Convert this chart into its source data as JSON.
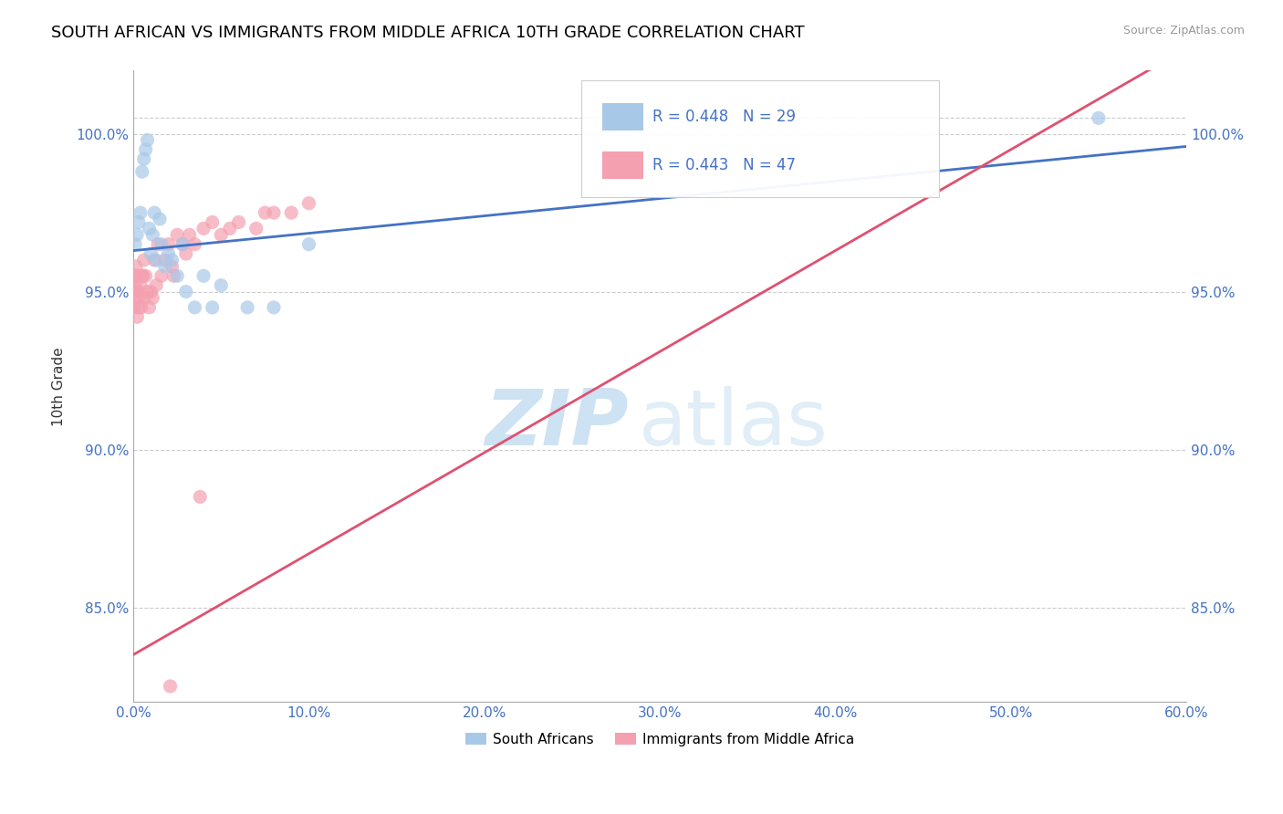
{
  "title": "SOUTH AFRICAN VS IMMIGRANTS FROM MIDDLE AFRICA 10TH GRADE CORRELATION CHART",
  "source": "Source: ZipAtlas.com",
  "xlabel_vals": [
    0,
    10,
    20,
    30,
    40,
    50,
    60
  ],
  "ylabel_vals": [
    85,
    90,
    95,
    100
  ],
  "ylabel_label": "10th Grade",
  "xlim": [
    0,
    60
  ],
  "ylim": [
    82,
    102
  ],
  "south_africans_x": [
    0.1,
    0.2,
    0.3,
    0.4,
    0.5,
    0.6,
    0.7,
    0.8,
    0.9,
    1.0,
    1.1,
    1.2,
    1.3,
    1.5,
    1.6,
    1.8,
    2.0,
    2.2,
    2.5,
    2.8,
    3.0,
    3.5,
    4.0,
    4.5,
    5.0,
    6.5,
    8.0,
    10.0,
    55.0
  ],
  "south_africans_y": [
    96.5,
    96.8,
    97.2,
    97.5,
    98.8,
    99.2,
    99.5,
    99.8,
    97.0,
    96.2,
    96.8,
    97.5,
    96.0,
    97.3,
    96.5,
    95.8,
    96.2,
    96.0,
    95.5,
    96.5,
    95.0,
    94.5,
    95.5,
    94.5,
    95.2,
    94.5,
    94.5,
    96.5,
    100.5
  ],
  "immigrants_x": [
    0.05,
    0.08,
    0.1,
    0.12,
    0.15,
    0.18,
    0.2,
    0.22,
    0.25,
    0.3,
    0.35,
    0.4,
    0.5,
    0.6,
    0.7,
    0.8,
    0.9,
    1.0,
    1.2,
    1.4,
    1.6,
    1.8,
    2.0,
    2.5,
    3.0,
    3.5,
    4.0,
    5.0,
    6.0,
    7.0,
    8.0,
    9.0,
    10.0,
    2.2,
    2.8,
    1.1,
    0.45,
    0.55,
    3.2,
    4.5,
    5.5,
    7.5,
    2.3,
    1.3,
    0.65,
    2.1,
    3.8
  ],
  "immigrants_y": [
    94.5,
    95.0,
    95.2,
    95.5,
    95.8,
    94.8,
    95.5,
    94.2,
    95.0,
    94.5,
    94.8,
    95.2,
    95.5,
    96.0,
    95.5,
    95.0,
    94.5,
    95.0,
    96.0,
    96.5,
    95.5,
    96.0,
    96.5,
    96.8,
    96.2,
    96.5,
    97.0,
    96.8,
    97.2,
    97.0,
    97.5,
    97.5,
    97.8,
    95.8,
    96.5,
    94.8,
    94.5,
    95.5,
    96.8,
    97.2,
    97.0,
    97.5,
    95.5,
    95.2,
    94.8,
    82.5,
    88.5
  ],
  "blue_color": "#a8c8e8",
  "pink_color": "#f4a0b0",
  "trend_blue": "#4472c4",
  "trend_pink": "#e05070",
  "blue_intercept": 96.3,
  "blue_slope": 0.055,
  "pink_intercept": 83.5,
  "pink_slope": 0.32,
  "R_blue": 0.448,
  "N_blue": 29,
  "R_pink": 0.443,
  "N_pink": 47,
  "legend_blue": "South Africans",
  "legend_pink": "Immigrants from Middle Africa",
  "watermark_zip": "ZIP",
  "watermark_atlas": "atlas",
  "background_color": "#ffffff",
  "title_color": "#000000",
  "title_fontsize": 13,
  "axis_label_color": "#4472c4",
  "grid_color": "#cccccc"
}
